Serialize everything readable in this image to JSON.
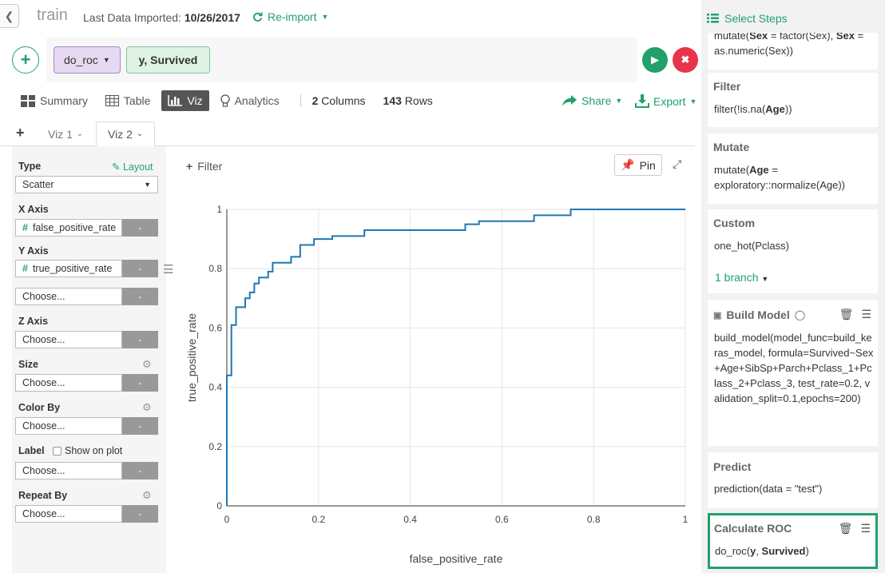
{
  "header": {
    "title": "train",
    "imported_label": "Last Data Imported:",
    "imported_date": "10/26/2017",
    "reimport_label": "Re-import"
  },
  "command": {
    "function_label": "do_roc",
    "args_label": "y, Survived"
  },
  "view_tabs": {
    "summary": "Summary",
    "table": "Table",
    "viz": "Viz",
    "analytics": "Analytics",
    "columns_count": "2",
    "columns_label": "Columns",
    "rows_count": "143",
    "rows_label": "Rows",
    "share": "Share",
    "export": "Export"
  },
  "viz_tabs": [
    {
      "label": "Viz 1"
    },
    {
      "label": "Viz 2"
    }
  ],
  "viz_settings": {
    "type_label": "Type",
    "layout_label": "Layout",
    "type_value": "Scatter",
    "x_axis_label": "X Axis",
    "x_axis_value": "false_positive_rate",
    "y_axis_label": "Y Axis",
    "y_axis_value": "true_positive_rate",
    "choose": "Choose...",
    "z_axis_label": "Z Axis",
    "size_label": "Size",
    "color_by_label": "Color By",
    "label_label": "Label",
    "show_on_plot": "Show on plot",
    "repeat_by_label": "Repeat By",
    "minus": "-"
  },
  "chart_toolbar": {
    "filter": "Filter",
    "pin": "Pin"
  },
  "chart_data": {
    "type": "line",
    "xlabel": "false_positive_rate",
    "ylabel": "true_positive_rate",
    "xlim": [
      0,
      1
    ],
    "ylim": [
      0,
      1
    ],
    "xticks": [
      "0",
      "0.2",
      "0.4",
      "0.6",
      "0.8",
      "1"
    ],
    "yticks": [
      "0",
      "0.2",
      "0.4",
      "0.6",
      "0.8",
      "1"
    ],
    "grid": true,
    "color": "#1f77b4",
    "x": [
      0,
      0,
      0.01,
      0.01,
      0.02,
      0.02,
      0.04,
      0.04,
      0.05,
      0.05,
      0.06,
      0.06,
      0.07,
      0.07,
      0.09,
      0.09,
      0.1,
      0.1,
      0.14,
      0.14,
      0.16,
      0.16,
      0.19,
      0.19,
      0.23,
      0.23,
      0.3,
      0.3,
      0.52,
      0.52,
      0.55,
      0.55,
      0.67,
      0.67,
      0.75,
      0.75,
      1
    ],
    "y": [
      0,
      0.44,
      0.44,
      0.61,
      0.61,
      0.67,
      0.67,
      0.7,
      0.7,
      0.72,
      0.72,
      0.75,
      0.75,
      0.77,
      0.77,
      0.79,
      0.79,
      0.82,
      0.82,
      0.84,
      0.84,
      0.88,
      0.88,
      0.9,
      0.9,
      0.91,
      0.91,
      0.93,
      0.93,
      0.95,
      0.95,
      0.96,
      0.96,
      0.98,
      0.98,
      1.0,
      1.0
    ]
  },
  "steps_panel": {
    "title": "Select Steps",
    "steps": [
      {
        "title": "",
        "body_html": "mutate(<b>Sex</b> = factor(Sex), <b>Sex</b> = as.numeric(Sex))"
      },
      {
        "title": "Filter",
        "body_html": "filter(!is.na(<b>Age</b>))"
      },
      {
        "title": "Mutate",
        "body_html": "mutate(<b>Age</b> = exploratory::normalize(Age))"
      },
      {
        "title": "Custom",
        "body_html": "one_hot(Pclass)"
      },
      {
        "title": "Build Model",
        "body_html": "build_model(model_func=build_keras_model, formula=Survived~Sex+Age+SibSp+Parch+Pclass_1+Pclass_2+Pclass_3, test_rate=0.2, validation_split=0.1,epochs=200)"
      },
      {
        "title": "Predict",
        "body_html": "prediction(data = \"test\")"
      },
      {
        "title": "Calculate ROC",
        "body_html": "do_roc(<b>y</b>, <b>Survived</b>)"
      }
    ],
    "branch_label": "1 branch"
  }
}
